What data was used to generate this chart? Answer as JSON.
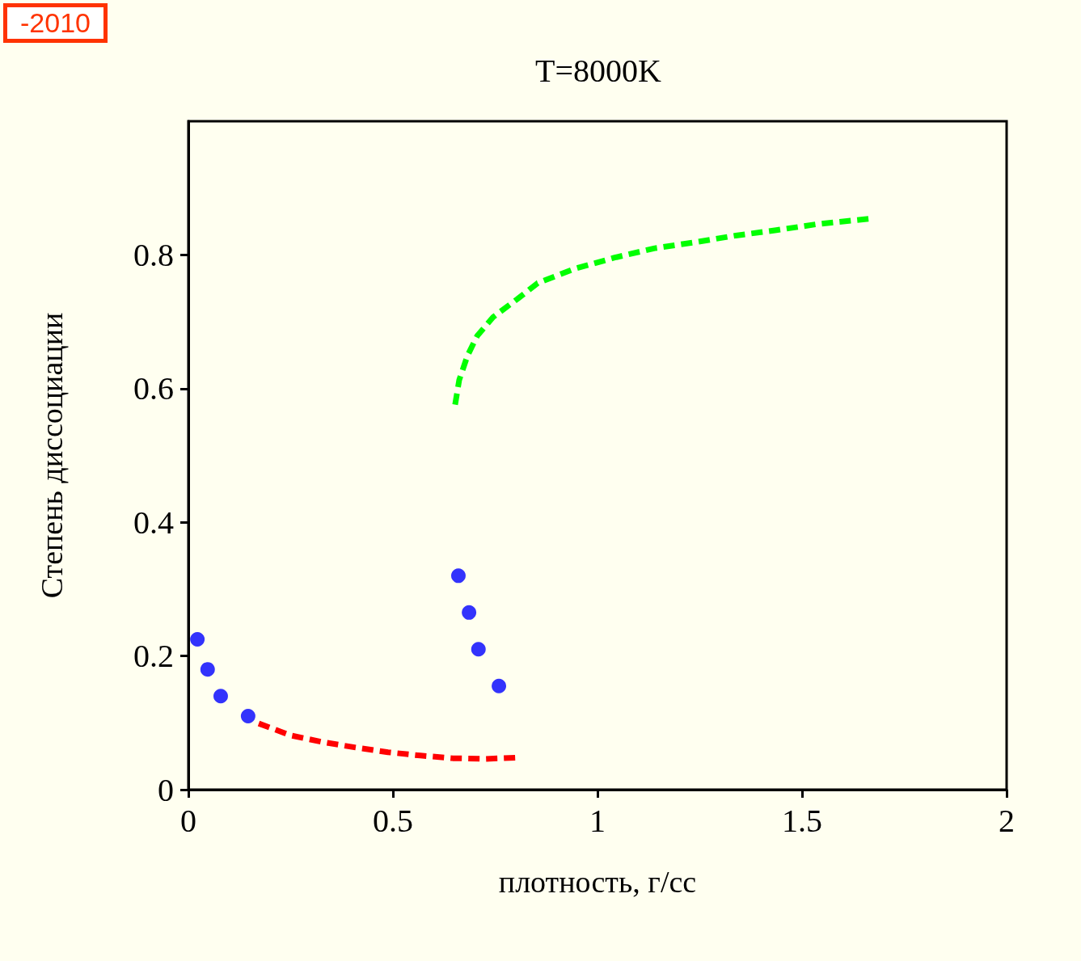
{
  "chart_data": {
    "type": "line",
    "title": "T=8000K",
    "xlabel": "плотность, г/сс",
    "ylabel": "Степень диссоциации",
    "annotations": [
      "-2010"
    ],
    "xlim": [
      0,
      2
    ],
    "xticks": [
      0,
      0.5,
      1,
      1.5,
      2
    ],
    "ylim": [
      0,
      1
    ],
    "yticks": [
      0,
      0.2,
      0.4,
      0.6,
      0.8
    ],
    "grid": false,
    "series": [
      {
        "type": "scatter",
        "marker": "circle",
        "color": "#0000ff",
        "x": [
          0.022,
          0.047,
          0.079,
          0.146,
          0.66,
          0.686,
          0.709,
          0.759
        ],
        "values": [
          0.225,
          0.18,
          0.14,
          0.11,
          0.32,
          0.265,
          0.21,
          0.155
        ]
      },
      {
        "line_style": "dashed",
        "color": "#ff0000",
        "x": [
          0.172,
          0.251,
          0.33,
          0.409,
          0.488,
          0.567,
          0.646,
          0.725,
          0.804
        ],
        "values": [
          0.099,
          0.081,
          0.071,
          0.063,
          0.056,
          0.051,
          0.047,
          0.046,
          0.048
        ]
      },
      {
        "line_style": "dashed",
        "color": "#00ff00",
        "x": [
          0.652,
          0.662,
          0.682,
          0.706,
          0.745,
          0.804,
          0.854,
          0.943,
          1.042,
          1.14,
          1.239,
          1.338,
          1.437,
          1.536,
          1.664
        ],
        "values": [
          0.576,
          0.613,
          0.649,
          0.679,
          0.707,
          0.734,
          0.758,
          0.779,
          0.796,
          0.81,
          0.819,
          0.829,
          0.837,
          0.846,
          0.854
        ]
      }
    ]
  }
}
